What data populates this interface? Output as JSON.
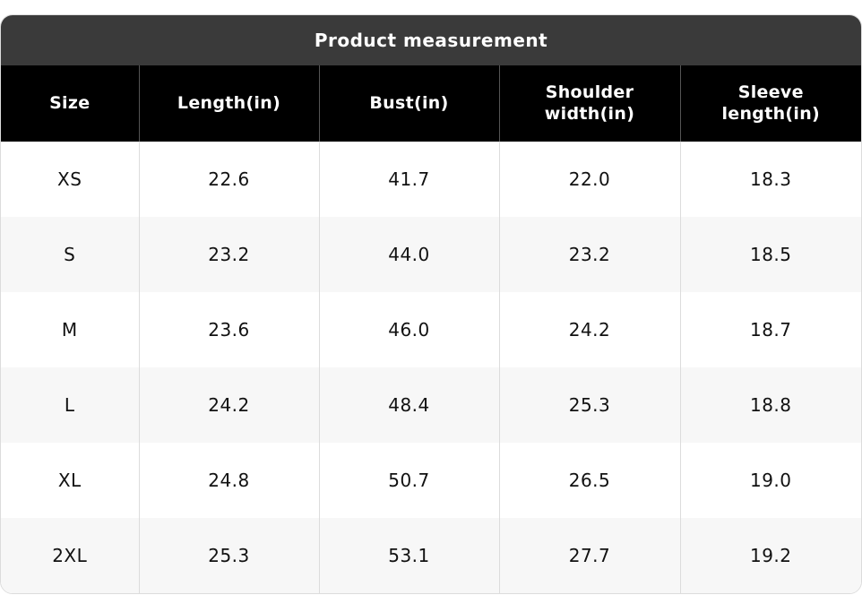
{
  "title": "Product measurement",
  "table": {
    "header": [
      "Size",
      "Length(in)",
      "Bust(in)",
      "Shoulder width(in)",
      "Sleeve length(in)"
    ],
    "rows": [
      [
        "XS",
        "22.6",
        "41.7",
        "22.0",
        "18.3"
      ],
      [
        "S",
        "23.2",
        "44.0",
        "23.2",
        "18.5"
      ],
      [
        "M",
        "23.6",
        "46.0",
        "24.2",
        "18.7"
      ],
      [
        "L",
        "24.2",
        "48.4",
        "25.3",
        "18.8"
      ],
      [
        "XL",
        "24.8",
        "50.7",
        "26.5",
        "19.0"
      ],
      [
        "2XL",
        "25.3",
        "53.1",
        "27.7",
        "19.2"
      ]
    ]
  }
}
